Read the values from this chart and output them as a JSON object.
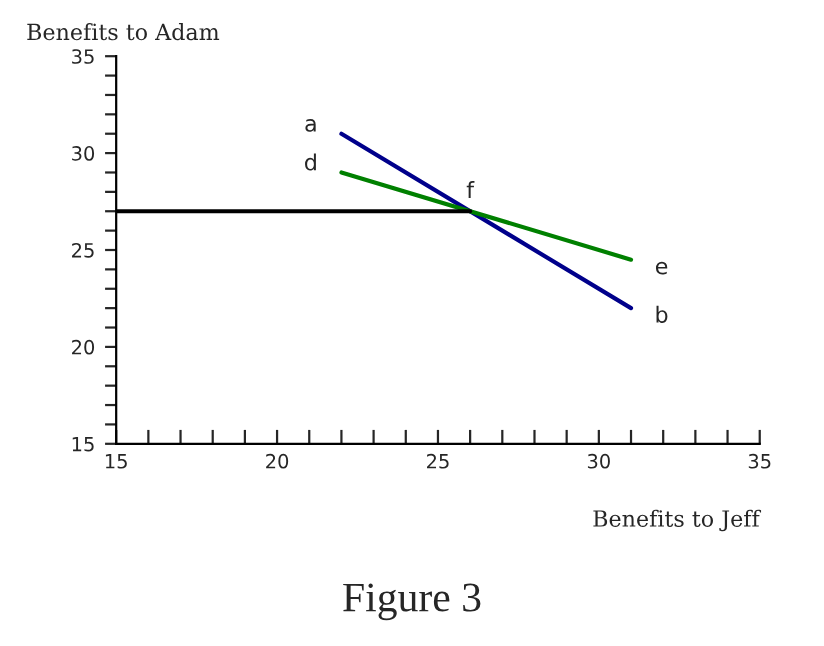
{
  "chart_data": {
    "type": "line",
    "title": "Figure 3",
    "xlabel": "Benefits to Jeff",
    "ylabel": "Benefits to Adam",
    "series": [
      {
        "x": [
          22,
          31
        ],
        "values": [
          31,
          22
        ],
        "color": "#00008b"
      },
      {
        "x": [
          22,
          31
        ],
        "values": [
          29,
          24.5
        ],
        "color": "#008000"
      },
      {
        "x": [
          15,
          26
        ],
        "values": [
          27,
          27
        ],
        "color": "#000000"
      }
    ],
    "annotations": [
      {
        "text": "a",
        "x": 22,
        "y": 31
      },
      {
        "text": "b",
        "x": 31,
        "y": 22
      },
      {
        "text": "d",
        "x": 22,
        "y": 29
      },
      {
        "text": "e",
        "x": 31,
        "y": 24.5
      },
      {
        "text": "f",
        "x": 26,
        "y": 27
      }
    ],
    "xlim": [
      15,
      35
    ],
    "ylim": [
      15,
      35
    ],
    "xticks": [
      15,
      {
        "value": 16,
        "label": null
      },
      {
        "value": 17,
        "label": null
      },
      {
        "value": 18,
        "label": null
      },
      {
        "value": 19,
        "label": null
      },
      20,
      {
        "value": 21,
        "label": null
      },
      {
        "value": 22,
        "label": null
      },
      {
        "value": 23,
        "label": null
      },
      {
        "value": 24,
        "label": null
      },
      25,
      {
        "value": 26,
        "label": null
      },
      {
        "value": 27,
        "label": null
      },
      {
        "value": 28,
        "label": null
      },
      {
        "value": 29,
        "label": null
      },
      30,
      {
        "value": 31,
        "label": null
      },
      {
        "value": 32,
        "label": null
      },
      {
        "value": 33,
        "label": null
      },
      {
        "value": 34,
        "label": null
      },
      35
    ],
    "yticks": [
      15,
      {
        "value": 16,
        "label": null
      },
      {
        "value": 17,
        "label": null
      },
      {
        "value": 18,
        "label": null
      },
      {
        "value": 19,
        "label": null
      },
      20,
      {
        "value": 21,
        "label": null
      },
      {
        "value": 22,
        "label": null
      },
      {
        "value": 23,
        "label": null
      },
      {
        "value": 24,
        "label": null
      },
      25,
      {
        "value": 26,
        "label": null
      },
      {
        "value": 27,
        "label": null
      },
      {
        "value": 28,
        "label": null
      },
      {
        "value": 29,
        "label": null
      },
      30,
      {
        "value": 31,
        "label": null
      },
      {
        "value": 32,
        "label": null
      },
      {
        "value": 33,
        "label": null
      },
      {
        "value": 34,
        "label": null
      },
      35
    ],
    "grid": false,
    "legend": false
  }
}
